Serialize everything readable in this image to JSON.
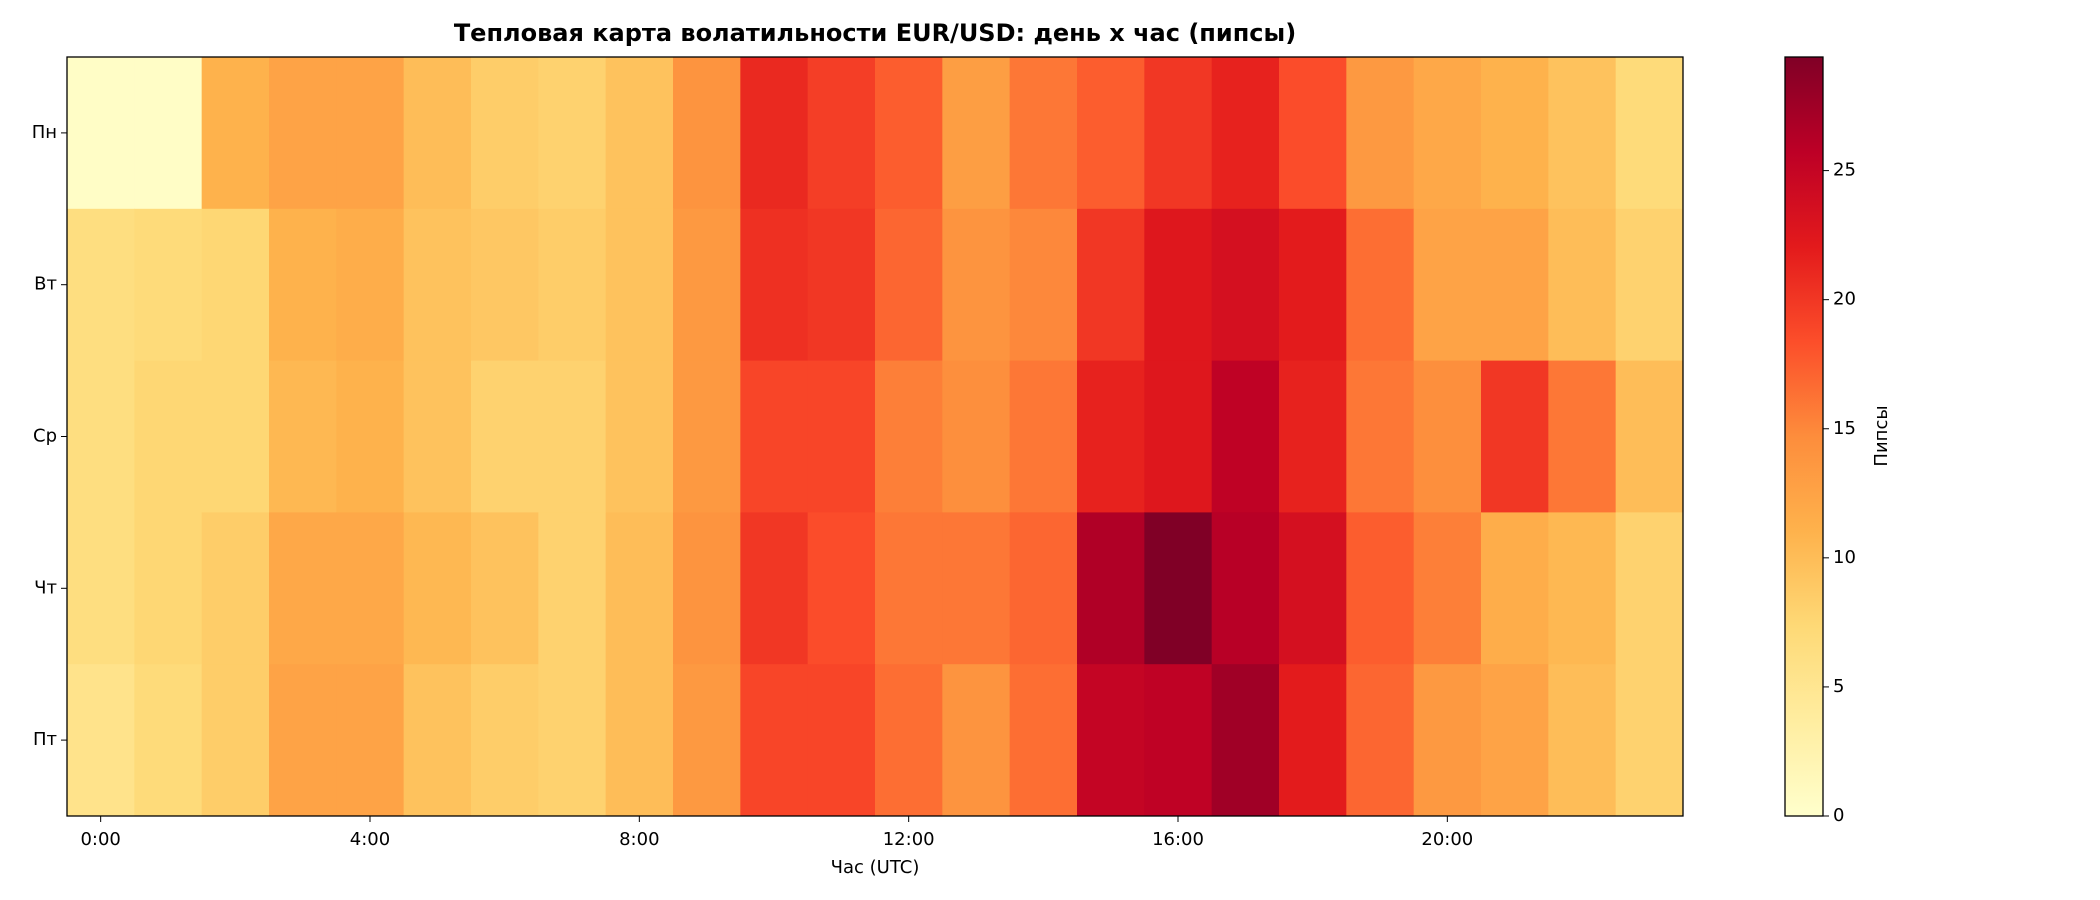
{
  "chart_data": {
    "type": "heatmap",
    "title": "Тепловая карта волатильности EUR/USD: день x час (пипсы)",
    "x_label": "Час (UTC)",
    "colorbar_label": "Пипсы",
    "colormap": "YlOrRd",
    "categories": [
      "0:00",
      null,
      null,
      null,
      "4:00",
      null,
      null,
      null,
      "8:00",
      null,
      null,
      null,
      "12:00",
      null,
      null,
      null,
      "16:00",
      null,
      null,
      null,
      "20:00",
      null,
      null,
      null
    ],
    "rows": [
      "Пн",
      "Вт",
      "Ср",
      "Чт",
      "Пт"
    ],
    "values": [
      [
        0.5,
        0.5,
        11,
        12.5,
        12.5,
        10,
        8.5,
        8,
        9.5,
        14,
        21,
        19.5,
        17.5,
        13,
        16,
        17.5,
        20,
        21.5,
        18.5,
        13.5,
        12,
        11,
        9.5,
        7
      ],
      [
        6.5,
        7,
        7.5,
        11,
        11.5,
        9.5,
        9,
        8.5,
        9.5,
        13.5,
        20.5,
        20,
        17,
        14,
        15,
        20,
        22.5,
        23.5,
        22,
        16.5,
        12.5,
        12.5,
        10,
        8
      ],
      [
        6.5,
        7.5,
        7.5,
        10.5,
        11,
        9.5,
        8,
        8,
        9.5,
        13.5,
        19,
        19,
        15.5,
        14.5,
        16,
        21.5,
        22.5,
        25.5,
        21.5,
        16,
        14.5,
        20,
        16,
        10
      ],
      [
        6.5,
        7.5,
        8.5,
        12,
        12,
        10.5,
        9.5,
        8,
        10,
        14,
        20,
        18.5,
        16,
        16,
        17,
        26.5,
        29.4,
        26,
        23.5,
        17.5,
        15.5,
        11.5,
        10.5,
        8
      ],
      [
        5.5,
        7,
        8.5,
        12.5,
        12.5,
        9.5,
        8.5,
        8,
        10,
        13.5,
        19,
        19,
        16.5,
        14,
        16.5,
        25,
        25.5,
        27.5,
        22,
        17,
        13.5,
        12.5,
        10,
        8
      ]
    ],
    "clim": [
      0,
      29.4
    ],
    "colorbar_ticks": [
      0,
      5,
      10,
      15,
      20,
      25
    ]
  }
}
